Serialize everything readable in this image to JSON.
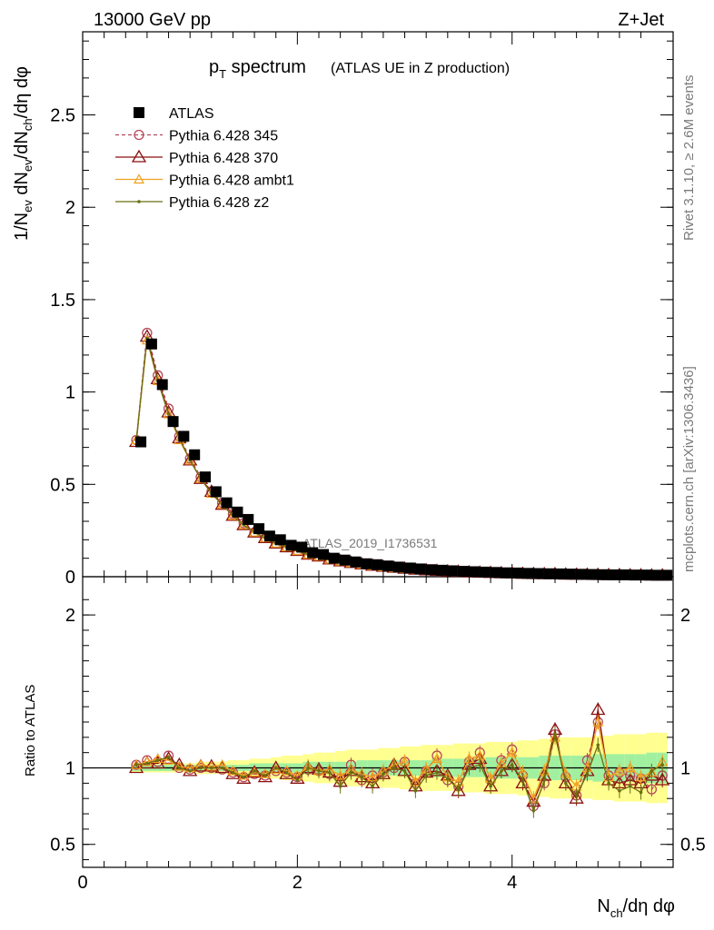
{
  "header": {
    "left": "13000 GeV pp",
    "right": "Z+Jet"
  },
  "plot_title": {
    "main": "p",
    "main_sub": "T",
    "main_rest": " spectrum",
    "note": "(ATLAS UE in Z production)"
  },
  "side_labels": {
    "rivet": "Rivet 3.1.10, ≥ 2.6M events",
    "mcplots": "mcplots.cern.ch [arXiv:1306.3436]"
  },
  "watermark": "ATLAS_2019_I1736531",
  "colors": {
    "data": "#000000",
    "p345": "#b5485a",
    "p370": "#8b1010",
    "ambt1": "#f0a020",
    "z2": "#6b7010",
    "band_inner": "#a0f0a0",
    "band_outer": "#ffff90"
  },
  "chart_data": [
    {
      "type": "line",
      "ylabel": "1/N_ev dN_ev/dN_ch/dη dφ",
      "xlim": [
        0,
        5.5
      ],
      "ylim": [
        0,
        2.95
      ],
      "yticks": [
        0,
        0.5,
        1,
        1.5,
        2,
        2.5
      ],
      "ytick_labels": [
        "0",
        "0.5",
        "1",
        "1.5",
        "2",
        "2.5"
      ],
      "legend_position": "top-left",
      "legend": [
        "ATLAS",
        "Pythia 6.428 345",
        "Pythia 6.428 370",
        "Pythia 6.428 ambt1",
        "Pythia 6.428 z2"
      ],
      "x": [
        0.5,
        0.6,
        0.7,
        0.8,
        0.9,
        1.0,
        1.1,
        1.2,
        1.3,
        1.4,
        1.5,
        1.6,
        1.7,
        1.8,
        1.9,
        2.0,
        2.1,
        2.2,
        2.3,
        2.4,
        2.5,
        2.6,
        2.7,
        2.8,
        2.9,
        3.0,
        3.1,
        3.2,
        3.3,
        3.4,
        3.5,
        3.6,
        3.7,
        3.8,
        3.9,
        4.0,
        4.1,
        4.2,
        4.3,
        4.4,
        4.5,
        4.6,
        4.7,
        4.8,
        4.9,
        5.0,
        5.1,
        5.2,
        5.3,
        5.4
      ],
      "series": [
        {
          "name": "ATLAS",
          "values": [
            0.73,
            1.26,
            1.04,
            0.84,
            0.76,
            0.66,
            0.54,
            0.46,
            0.4,
            0.35,
            0.31,
            0.26,
            0.22,
            0.2,
            0.17,
            0.16,
            0.13,
            0.12,
            0.1,
            0.09,
            0.08,
            0.07,
            0.065,
            0.058,
            0.052,
            0.047,
            0.042,
            0.038,
            0.035,
            0.032,
            0.029,
            0.027,
            0.025,
            0.023,
            0.021,
            0.02,
            0.018,
            0.017,
            0.016,
            0.015,
            0.014,
            0.013,
            0.012,
            0.011,
            0.01,
            0.01,
            0.009,
            0.009,
            0.008,
            0.008
          ]
        },
        {
          "name": "Pythia 6.428 345",
          "values": [
            0.74,
            1.32,
            1.09,
            0.91,
            0.76,
            0.64,
            0.54,
            0.46,
            0.4,
            0.34,
            0.29,
            0.24,
            0.21,
            0.18,
            0.16,
            0.14,
            0.12,
            0.11,
            0.095,
            0.085,
            0.076,
            0.068,
            0.061,
            0.055,
            0.05,
            0.045,
            0.04,
            0.036,
            0.033,
            0.03,
            0.027,
            0.025,
            0.023,
            0.021,
            0.02,
            0.019,
            0.017,
            0.015,
            0.014,
            0.014,
            0.013,
            0.012,
            0.011,
            0.011,
            0.01,
            0.009,
            0.009,
            0.008,
            0.008,
            0.007
          ]
        },
        {
          "name": "Pythia 6.428 370",
          "values": [
            0.73,
            1.3,
            1.07,
            0.89,
            0.75,
            0.63,
            0.53,
            0.46,
            0.39,
            0.33,
            0.28,
            0.24,
            0.21,
            0.18,
            0.16,
            0.14,
            0.12,
            0.11,
            0.094,
            0.084,
            0.075,
            0.067,
            0.06,
            0.054,
            0.049,
            0.044,
            0.039,
            0.035,
            0.032,
            0.029,
            0.027,
            0.024,
            0.022,
            0.021,
            0.019,
            0.018,
            0.016,
            0.015,
            0.014,
            0.014,
            0.012,
            0.011,
            0.011,
            0.01,
            0.009,
            0.009,
            0.008,
            0.008,
            0.007,
            0.007
          ]
        },
        {
          "name": "Pythia 6.428 ambt1",
          "values": [
            0.74,
            1.28,
            1.06,
            0.88,
            0.74,
            0.63,
            0.53,
            0.45,
            0.39,
            0.33,
            0.28,
            0.24,
            0.21,
            0.18,
            0.16,
            0.14,
            0.12,
            0.11,
            0.093,
            0.083,
            0.074,
            0.066,
            0.059,
            0.053,
            0.048,
            0.043,
            0.039,
            0.035,
            0.032,
            0.029,
            0.026,
            0.024,
            0.022,
            0.02,
            0.019,
            0.018,
            0.016,
            0.015,
            0.014,
            0.013,
            0.012,
            0.011,
            0.01,
            0.01,
            0.009,
            0.009,
            0.008,
            0.008,
            0.007,
            0.007
          ]
        },
        {
          "name": "Pythia 6.428 z2",
          "values": [
            0.74,
            1.29,
            1.06,
            0.88,
            0.75,
            0.63,
            0.53,
            0.45,
            0.39,
            0.33,
            0.28,
            0.24,
            0.21,
            0.18,
            0.16,
            0.14,
            0.12,
            0.11,
            0.093,
            0.083,
            0.074,
            0.066,
            0.059,
            0.053,
            0.048,
            0.043,
            0.039,
            0.035,
            0.031,
            0.029,
            0.026,
            0.024,
            0.022,
            0.02,
            0.019,
            0.017,
            0.016,
            0.015,
            0.014,
            0.013,
            0.012,
            0.011,
            0.01,
            0.01,
            0.009,
            0.009,
            0.008,
            0.008,
            0.007,
            0.007
          ]
        }
      ]
    },
    {
      "type": "line",
      "ylabel": "Ratio to ATLAS",
      "xlabel": "N_ch/dη dφ",
      "xlim": [
        0,
        5.5
      ],
      "ylim": [
        0.35,
        2.25
      ],
      "yticks": [
        0.5,
        1,
        2
      ],
      "ytick_labels": [
        "0.5",
        "1",
        "2"
      ],
      "xticks": [
        0,
        2,
        4
      ],
      "xtick_labels": [
        "0",
        "2",
        "4"
      ],
      "band_inner_halfwidth": [
        0.02,
        0.02,
        0.02,
        0.02,
        0.02,
        0.02,
        0.02,
        0.02,
        0.02,
        0.02,
        0.02,
        0.03,
        0.03,
        0.03,
        0.03,
        0.03,
        0.04,
        0.04,
        0.04,
        0.04,
        0.04,
        0.05,
        0.05,
        0.05,
        0.05,
        0.05,
        0.05,
        0.05,
        0.06,
        0.06,
        0.06,
        0.06,
        0.06,
        0.07,
        0.07,
        0.07,
        0.07,
        0.07,
        0.08,
        0.08,
        0.08,
        0.08,
        0.08,
        0.09,
        0.09,
        0.09,
        0.09,
        0.09,
        0.1,
        0.1
      ],
      "band_outer_halfwidth": [
        0.03,
        0.03,
        0.03,
        0.03,
        0.03,
        0.03,
        0.04,
        0.04,
        0.04,
        0.05,
        0.05,
        0.06,
        0.06,
        0.07,
        0.08,
        0.08,
        0.09,
        0.1,
        0.1,
        0.11,
        0.12,
        0.12,
        0.12,
        0.13,
        0.13,
        0.14,
        0.14,
        0.15,
        0.15,
        0.15,
        0.16,
        0.16,
        0.16,
        0.17,
        0.17,
        0.17,
        0.18,
        0.18,
        0.19,
        0.2,
        0.2,
        0.2,
        0.2,
        0.21,
        0.21,
        0.22,
        0.22,
        0.22,
        0.23,
        0.23
      ],
      "series": [
        {
          "name": "Pythia 6.428 345",
          "values": [
            1.02,
            1.05,
            1.04,
            1.08,
            1.0,
            0.99,
            1.0,
            1.0,
            0.99,
            0.97,
            0.94,
            0.96,
            0.95,
            0.98,
            0.97,
            0.94,
            0.99,
            0.98,
            0.96,
            0.93,
            1.02,
            0.92,
            0.95,
            0.97,
            1.0,
            1.04,
            0.9,
            0.98,
            1.08,
            0.92,
            0.88,
            1.04,
            1.1,
            0.92,
            1.05,
            1.12,
            0.95,
            0.75,
            0.9,
            1.22,
            0.94,
            0.82,
            1.05,
            1.3,
            0.95,
            0.97,
            0.95,
            0.93,
            0.86,
            0.95
          ]
        },
        {
          "name": "Pythia 6.428 370",
          "values": [
            1.0,
            1.03,
            1.03,
            1.06,
            1.02,
            0.98,
            1.01,
            1.01,
            1.0,
            0.96,
            0.93,
            0.97,
            0.94,
            1.0,
            0.96,
            0.93,
            1.0,
            0.99,
            0.97,
            0.91,
            0.98,
            0.94,
            0.9,
            0.96,
            1.02,
            0.98,
            0.88,
            0.97,
            0.98,
            0.95,
            0.85,
            1.02,
            1.06,
            0.88,
            0.98,
            1.02,
            0.9,
            0.78,
            0.95,
            1.25,
            0.9,
            0.8,
            0.98,
            1.38,
            0.92,
            0.9,
            0.92,
            0.9,
            0.95,
            0.92
          ]
        },
        {
          "name": "Pythia 6.428 ambt1",
          "values": [
            1.02,
            1.04,
            1.06,
            1.05,
            1.01,
            1.0,
            1.02,
            1.01,
            1.02,
            0.98,
            0.95,
            0.97,
            0.96,
            0.99,
            0.98,
            0.95,
            1.01,
            0.98,
            0.99,
            0.95,
            0.99,
            0.96,
            0.94,
            0.98,
            1.02,
            1.04,
            0.91,
            0.99,
            1.06,
            0.94,
            0.91,
            1.06,
            1.08,
            0.93,
            1.03,
            1.1,
            0.97,
            0.8,
            0.98,
            1.2,
            0.96,
            0.88,
            1.0,
            1.3,
            0.94,
            0.98,
            1.0,
            0.94,
            0.97,
            1.04
          ]
        },
        {
          "name": "Pythia 6.428 z2",
          "values": [
            1.02,
            1.03,
            1.05,
            1.07,
            1.0,
            0.98,
            1.0,
            1.0,
            1.0,
            0.97,
            0.94,
            0.98,
            0.95,
            1.0,
            0.97,
            0.92,
            1.0,
            0.98,
            0.97,
            0.88,
            0.97,
            0.94,
            0.88,
            0.96,
            1.0,
            0.98,
            0.85,
            0.95,
            0.97,
            0.93,
            0.86,
            1.0,
            1.02,
            0.88,
            0.98,
            1.02,
            0.92,
            0.72,
            0.92,
            1.22,
            0.9,
            0.82,
            0.96,
            1.15,
            0.9,
            0.85,
            0.88,
            0.84,
            0.98,
            1.02
          ]
        }
      ]
    }
  ]
}
